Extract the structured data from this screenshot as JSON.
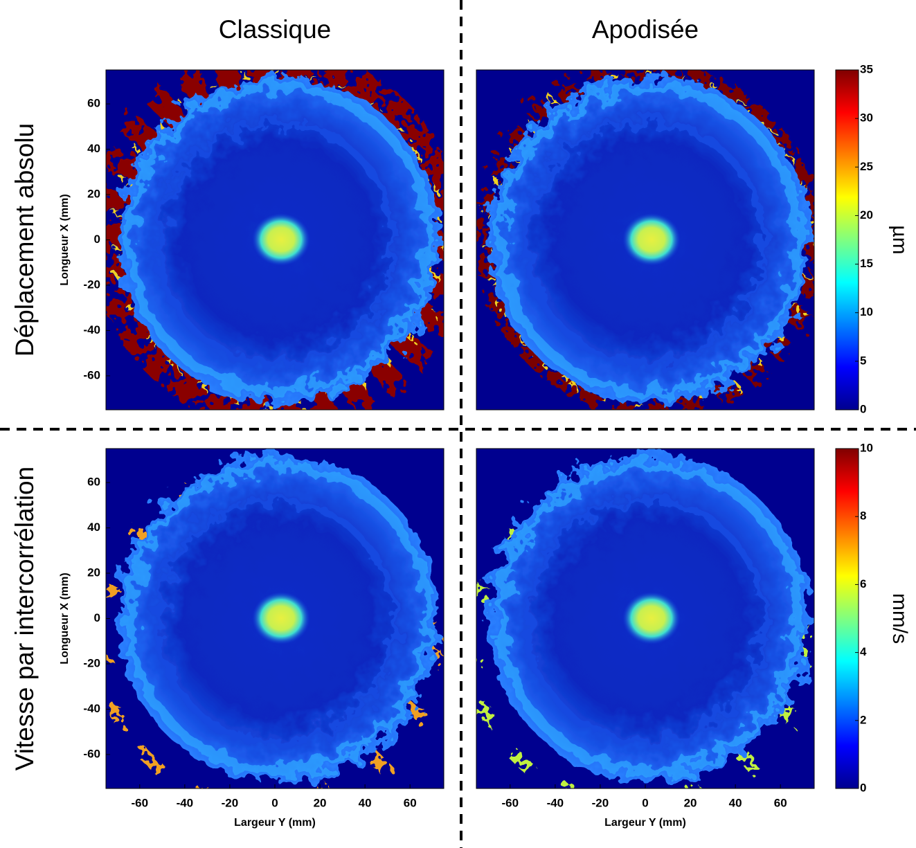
{
  "chart_data": [
    {
      "type": "heatmap",
      "title": "Classique",
      "row_label": "Déplacement absolu",
      "ylabel": "Longueur X (mm)",
      "xlim": [
        -75,
        75
      ],
      "ylim": [
        -75,
        75
      ],
      "yticks": [
        -60,
        -40,
        -20,
        0,
        20,
        40,
        60
      ],
      "colormap": "jet"
    },
    {
      "type": "heatmap",
      "title": "Apodisée",
      "xlim": [
        -75,
        75
      ],
      "ylim": [
        -75,
        75
      ],
      "colormap": "jet",
      "colorbar": {
        "label": "µm",
        "lim": [
          0,
          35
        ],
        "ticks": [
          0,
          5,
          10,
          15,
          20,
          25,
          30,
          35
        ]
      }
    },
    {
      "type": "heatmap",
      "row_label": "Vitesse par intercorrélation",
      "ylabel": "Longueur X (mm)",
      "xlabel": "Largeur Y (mm)",
      "xlim": [
        -75,
        75
      ],
      "ylim": [
        -75,
        75
      ],
      "xticks": [
        -60,
        -40,
        -20,
        0,
        20,
        40,
        60
      ],
      "yticks": [
        -60,
        -40,
        -20,
        0,
        20,
        40,
        60
      ],
      "colormap": "jet"
    },
    {
      "type": "heatmap",
      "xlabel": "Largeur Y (mm)",
      "xlim": [
        -75,
        75
      ],
      "ylim": [
        -75,
        75
      ],
      "xticks": [
        -60,
        -40,
        -20,
        0,
        20,
        40,
        60
      ],
      "colormap": "jet",
      "colorbar": {
        "label": "mm/s",
        "lim": [
          0,
          10
        ],
        "ticks": [
          0,
          2,
          4,
          6,
          8,
          10
        ]
      }
    }
  ]
}
